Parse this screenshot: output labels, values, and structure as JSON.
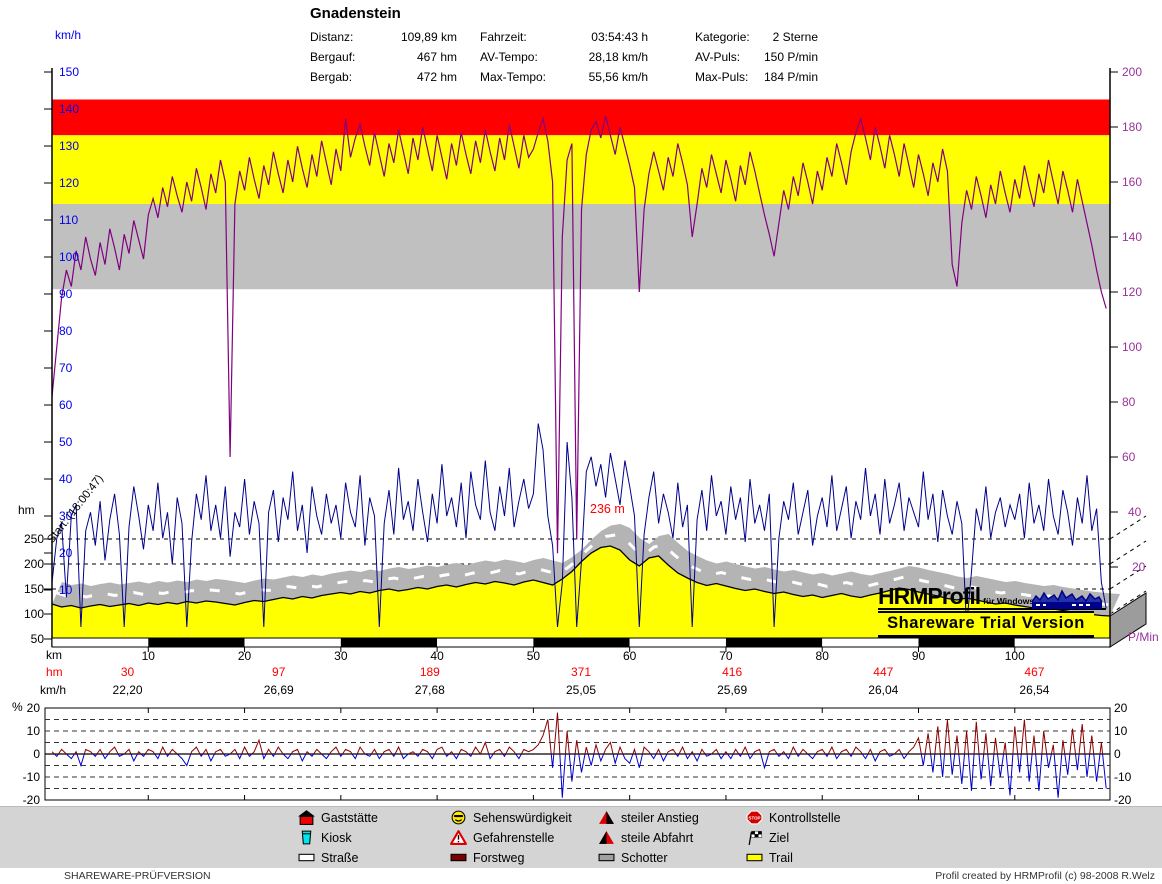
{
  "title": "Gnadenstein",
  "stats": {
    "col1": [
      {
        "l": "Distanz:",
        "v": "109,89 km"
      },
      {
        "l": "Bergauf:",
        "v": "467 hm"
      },
      {
        "l": "Bergab:",
        "v": "472 hm"
      }
    ],
    "col2": [
      {
        "l": "Fahrzeit:",
        "v": "03:54:43 h"
      },
      {
        "l": "AV-Tempo:",
        "v": "28,18 km/h"
      },
      {
        "l": "Max-Tempo:",
        "v": "55,56 km/h"
      }
    ],
    "col3": [
      {
        "l": "Kategorie:",
        "v": "2 Sterne"
      },
      {
        "l": "AV-Puls:",
        "v": "150 P/min"
      },
      {
        "l": "Max-Puls:",
        "v": "184 P/min"
      }
    ]
  },
  "labels": {
    "kmh_axis_top": "km/h",
    "hm_axis": "hm",
    "km_axis": "km",
    "hm_row": "hm",
    "kmh_row": "km/h",
    "pct": "%",
    "pmin": "P/Min",
    "start_note": "Start: (18:00:47)",
    "peak_note": "236 m"
  },
  "bottom_rows": {
    "hm_values": [
      "30",
      "97",
      "189",
      "371",
      "416",
      "447",
      "467"
    ],
    "kmh_values": [
      "22,20",
      "26,69",
      "27,68",
      "25,05",
      "25,69",
      "26,04",
      "26,54"
    ]
  },
  "watermark": {
    "name": "HRMProfil",
    "sub": "für Windows",
    "trial": "Shareware Trial  Version"
  },
  "footer": {
    "left": "SHAREWARE-PRÜFVERSION",
    "right": "Profil created by HRMProfil (c) 98-2008 R.Welz"
  },
  "legend": {
    "items": [
      {
        "icon": "house-icon",
        "label": "Gaststätte"
      },
      {
        "icon": "cup-icon",
        "label": "Kiosk"
      },
      {
        "icon": "road-icon",
        "label": "Straße"
      },
      {
        "icon": "smiley-icon",
        "label": "Sehenswürdigkeit"
      },
      {
        "icon": "warning-icon",
        "label": "Gefahrenstelle"
      },
      {
        "icon": "forest-road-icon",
        "label": "Forstweg"
      },
      {
        "icon": "steep-up-icon",
        "label": "steiler Anstieg"
      },
      {
        "icon": "steep-down-icon",
        "label": "steile Abfahrt"
      },
      {
        "icon": "gravel-icon",
        "label": "Schotter"
      },
      {
        "icon": "stop-icon",
        "label": "Kontrollstelle"
      },
      {
        "icon": "flag-icon",
        "label": "Ziel"
      },
      {
        "icon": "trail-icon",
        "label": "Trail"
      }
    ]
  },
  "colors": {
    "heart_rate": "#800080",
    "speed": "#00008b",
    "elevation_fill": "#ffff00",
    "elevation_top3d": "#b4b4b4",
    "zone_red": "#ff0000",
    "zone_yellow": "#ffff00",
    "zone_gray": "#c0c0c0",
    "gradient_pos": "#8b0000",
    "gradient_neg": "#0000cd",
    "axis_left": "#0000ee",
    "axis_right": "#993399",
    "hm_row": "#ff0000"
  },
  "chart_data": {
    "type": "line",
    "title": "Gnadenstein",
    "x_unit": "km",
    "x_max": 109.89,
    "zones_pmin": {
      "red": [
        177,
        190
      ],
      "yellow": [
        152,
        177
      ],
      "gray": [
        121,
        152
      ]
    },
    "axis": {
      "left_kmh": [
        150,
        140,
        130,
        120,
        110,
        100,
        90,
        80,
        70,
        60,
        50,
        40,
        30,
        20,
        10
      ],
      "right_pmin": [
        200,
        180,
        160,
        140,
        120,
        100,
        80,
        60,
        40,
        20
      ],
      "hm": [
        250,
        200,
        150,
        100,
        50
      ],
      "km": [
        10,
        20,
        30,
        40,
        50,
        60,
        70,
        80,
        90,
        100
      ],
      "gradient_pct": [
        20,
        10,
        0,
        -10,
        -20
      ]
    },
    "series": [
      {
        "name": "heart_rate",
        "unit": "P/min",
        "x_step": 0.5,
        "values": [
          82,
          100,
          118,
          128,
          122,
          135,
          128,
          140,
          132,
          126,
          138,
          130,
          143,
          136,
          128,
          141,
          134,
          146,
          139,
          132,
          148,
          154,
          147,
          158,
          151,
          162,
          155,
          149,
          160,
          153,
          165,
          158,
          150,
          163,
          156,
          168,
          160,
          60,
          152,
          164,
          157,
          169,
          161,
          154,
          166,
          159,
          171,
          163,
          156,
          168,
          160,
          173,
          165,
          158,
          170,
          162,
          175,
          167,
          159,
          172,
          164,
          183,
          169,
          176,
          181,
          173,
          166,
          178,
          170,
          162,
          174,
          167,
          179,
          171,
          163,
          176,
          168,
          180,
          172,
          164,
          177,
          169,
          161,
          174,
          166,
          178,
          170,
          163,
          175,
          167,
          179,
          171,
          164,
          176,
          168,
          181,
          173,
          165,
          177,
          169,
          172,
          178,
          183,
          175,
          160,
          25,
          140,
          168,
          174,
          30,
          150,
          170,
          179,
          182,
          176,
          184,
          177,
          170,
          180,
          173,
          166,
          158,
          120,
          150,
          163,
          171,
          164,
          157,
          169,
          162,
          174,
          167,
          159,
          140,
          152,
          165,
          158,
          170,
          163,
          156,
          168,
          161,
          153,
          166,
          159,
          171,
          164,
          156,
          148,
          141,
          133,
          145,
          157,
          150,
          162,
          155,
          167,
          160,
          152,
          164,
          157,
          169,
          162,
          174,
          167,
          159,
          171,
          178,
          183,
          176,
          168,
          180,
          173,
          165,
          177,
          170,
          162,
          174,
          166,
          158,
          170,
          163,
          155,
          167,
          160,
          172,
          164,
          130,
          122,
          145,
          157,
          150,
          162,
          155,
          147,
          159,
          152,
          164,
          156,
          149,
          161,
          154,
          166,
          158,
          151,
          163,
          156,
          168,
          160,
          152,
          164,
          157,
          149,
          161,
          153,
          145,
          137,
          128,
          120,
          114
        ]
      },
      {
        "name": "speed",
        "unit": "km/h",
        "x_step": 0.5,
        "values": [
          12,
          24,
          28,
          8,
          30,
          33,
          0,
          26,
          31,
          22,
          34,
          18,
          29,
          36,
          25,
          0,
          27,
          38,
          30,
          21,
          33,
          26,
          39,
          24,
          31,
          17,
          35,
          28,
          0,
          23,
          36,
          29,
          41,
          26,
          33,
          24,
          38,
          19,
          31,
          27,
          40,
          25,
          34,
          28,
          0,
          31,
          37,
          23,
          35,
          29,
          42,
          26,
          33,
          20,
          38,
          30,
          25,
          36,
          28,
          33,
          24,
          39,
          31,
          27,
          41,
          22,
          35,
          30,
          0,
          28,
          37,
          25,
          43,
          29,
          34,
          26,
          40,
          31,
          23,
          36,
          28,
          44,
          30,
          35,
          27,
          39,
          24,
          42,
          33,
          29,
          45,
          31,
          26,
          38,
          30,
          43,
          27,
          34,
          40,
          32,
          36,
          55,
          48,
          30,
          22,
          0,
          12,
          50,
          35,
          0,
          18,
          42,
          46,
          38,
          44,
          35,
          47,
          40,
          33,
          45,
          38,
          30,
          0,
          25,
          35,
          42,
          28,
          36,
          31,
          24,
          39,
          27,
          33,
          0,
          29,
          37,
          26,
          41,
          30,
          34,
          25,
          38,
          29,
          35,
          23,
          40,
          28,
          33,
          26,
          36,
          0,
          24,
          34,
          29,
          39,
          25,
          31,
          37,
          22,
          30,
          35,
          27,
          41,
          26,
          32,
          38,
          24,
          34,
          29,
          43,
          30,
          36,
          25,
          40,
          28,
          33,
          39,
          26,
          35,
          31,
          27,
          42,
          29,
          36,
          23,
          37,
          30,
          25,
          34,
          28,
          0,
          15,
          32,
          26,
          38,
          24,
          31,
          35,
          27,
          33,
          29,
          36,
          24,
          39,
          28,
          33,
          26,
          40,
          30,
          25,
          37,
          31,
          22,
          35,
          28,
          41,
          26,
          32,
          12,
          5
        ]
      },
      {
        "name": "elevation",
        "unit": "m",
        "x_step": 1,
        "values": [
          120,
          114,
          117,
          112,
          116,
          119,
          115,
          118,
          121,
          117,
          122,
          119,
          123,
          120,
          125,
          122,
          126,
          124,
          121,
          118,
          123,
          127,
          125,
          129,
          133,
          130,
          135,
          132,
          137,
          140,
          143,
          140,
          145,
          142,
          147,
          150,
          146,
          149,
          153,
          150,
          155,
          158,
          154,
          159,
          163,
          160,
          165,
          162,
          158,
          164,
          168,
          163,
          158,
          170,
          185,
          205,
          222,
          233,
          236,
          228,
          208,
          196,
          212,
          216,
          198,
          182,
          172,
          163,
          157,
          161,
          156,
          151,
          147,
          150,
          145,
          141,
          144,
          139,
          135,
          138,
          133,
          137,
          141,
          136,
          133,
          138,
          142,
          147,
          152,
          149,
          144,
          140,
          136,
          131,
          128,
          132,
          128,
          124,
          120,
          122,
          118,
          115,
          112,
          114,
          110,
          107,
          104,
          101,
          99,
          97,
          96
        ]
      },
      {
        "name": "gradient",
        "unit": "%",
        "x_step": 0.5,
        "values": [
          1,
          -1,
          2,
          0,
          -2,
          1,
          -5,
          2,
          1,
          -1,
          2,
          -2,
          1,
          3,
          -1,
          0,
          2,
          -3,
          1,
          -1,
          2,
          1,
          -2,
          3,
          -1,
          2,
          0,
          -2,
          -5,
          1,
          3,
          -1,
          2,
          -3,
          1,
          2,
          -1,
          0,
          2,
          -2,
          3,
          -1,
          1,
          6,
          -2,
          2,
          -1,
          3,
          0,
          -2,
          1,
          2,
          -3,
          1,
          -1,
          2,
          0,
          -2,
          1,
          3,
          -1,
          2,
          1,
          -2,
          3,
          0,
          -1,
          2,
          -2,
          1,
          2,
          -1,
          3,
          -2,
          0,
          1,
          -1,
          2,
          1,
          -2,
          2,
          3,
          -1,
          1,
          -2,
          2,
          1,
          -1,
          3,
          0,
          5,
          -2,
          1,
          2,
          -1,
          3,
          1,
          -2,
          2,
          1,
          2,
          4,
          8,
          15,
          -6,
          18,
          -19,
          10,
          -12,
          6,
          -8,
          3,
          -5,
          4,
          -3,
          2,
          5,
          -4,
          3,
          -2,
          -4,
          2,
          -6,
          3,
          1,
          -2,
          2,
          -3,
          1,
          2,
          -1,
          3,
          -2,
          1,
          -3,
          2,
          -1,
          0,
          2,
          -2,
          1,
          -2,
          2,
          -1,
          3,
          -2,
          1,
          2,
          -6,
          1,
          2,
          -1,
          1,
          -2,
          3,
          -1,
          2,
          0,
          -2,
          1,
          2,
          -1,
          3,
          -2,
          1,
          2,
          -1,
          3,
          1,
          -2,
          2,
          -3,
          1,
          2,
          -1,
          0,
          2,
          -2,
          1,
          3,
          7,
          -5,
          9,
          -8,
          12,
          -10,
          15,
          -9,
          8,
          -13,
          10,
          -16,
          14,
          -11,
          9,
          -14,
          7,
          -10,
          5,
          -18,
          12,
          -8,
          15,
          -12,
          8,
          -16,
          10,
          -6,
          4,
          -19,
          6,
          -9,
          11,
          -7,
          13,
          -10,
          8,
          -12,
          5,
          -15
        ]
      }
    ]
  }
}
